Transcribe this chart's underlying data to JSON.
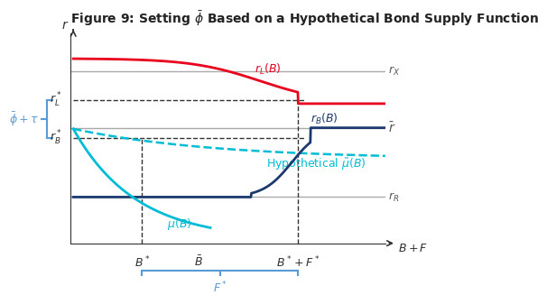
{
  "title": "Figure 9: Setting $\\bar{\\phi}$ Based on a Hypothetical Bond Supply Function",
  "bg_color": "#ffffff",
  "r_X": 0.82,
  "r_bar": 0.55,
  "r_R": 0.22,
  "r_L_star": 0.68,
  "r_B_star": 0.5,
  "B_star": 0.22,
  "B_bar": 0.4,
  "B_star_F_star": 0.72,
  "x_max": 1.0,
  "y_max": 1.0,
  "colors": {
    "red": "#e8001c",
    "dark_blue": "#1c3a6e",
    "cyan": "#00bcd4",
    "gray_line": "#aaaaaa",
    "dashed_black": "#333333",
    "bracket_blue": "#5b9bd5",
    "axis_color": "#333333"
  }
}
